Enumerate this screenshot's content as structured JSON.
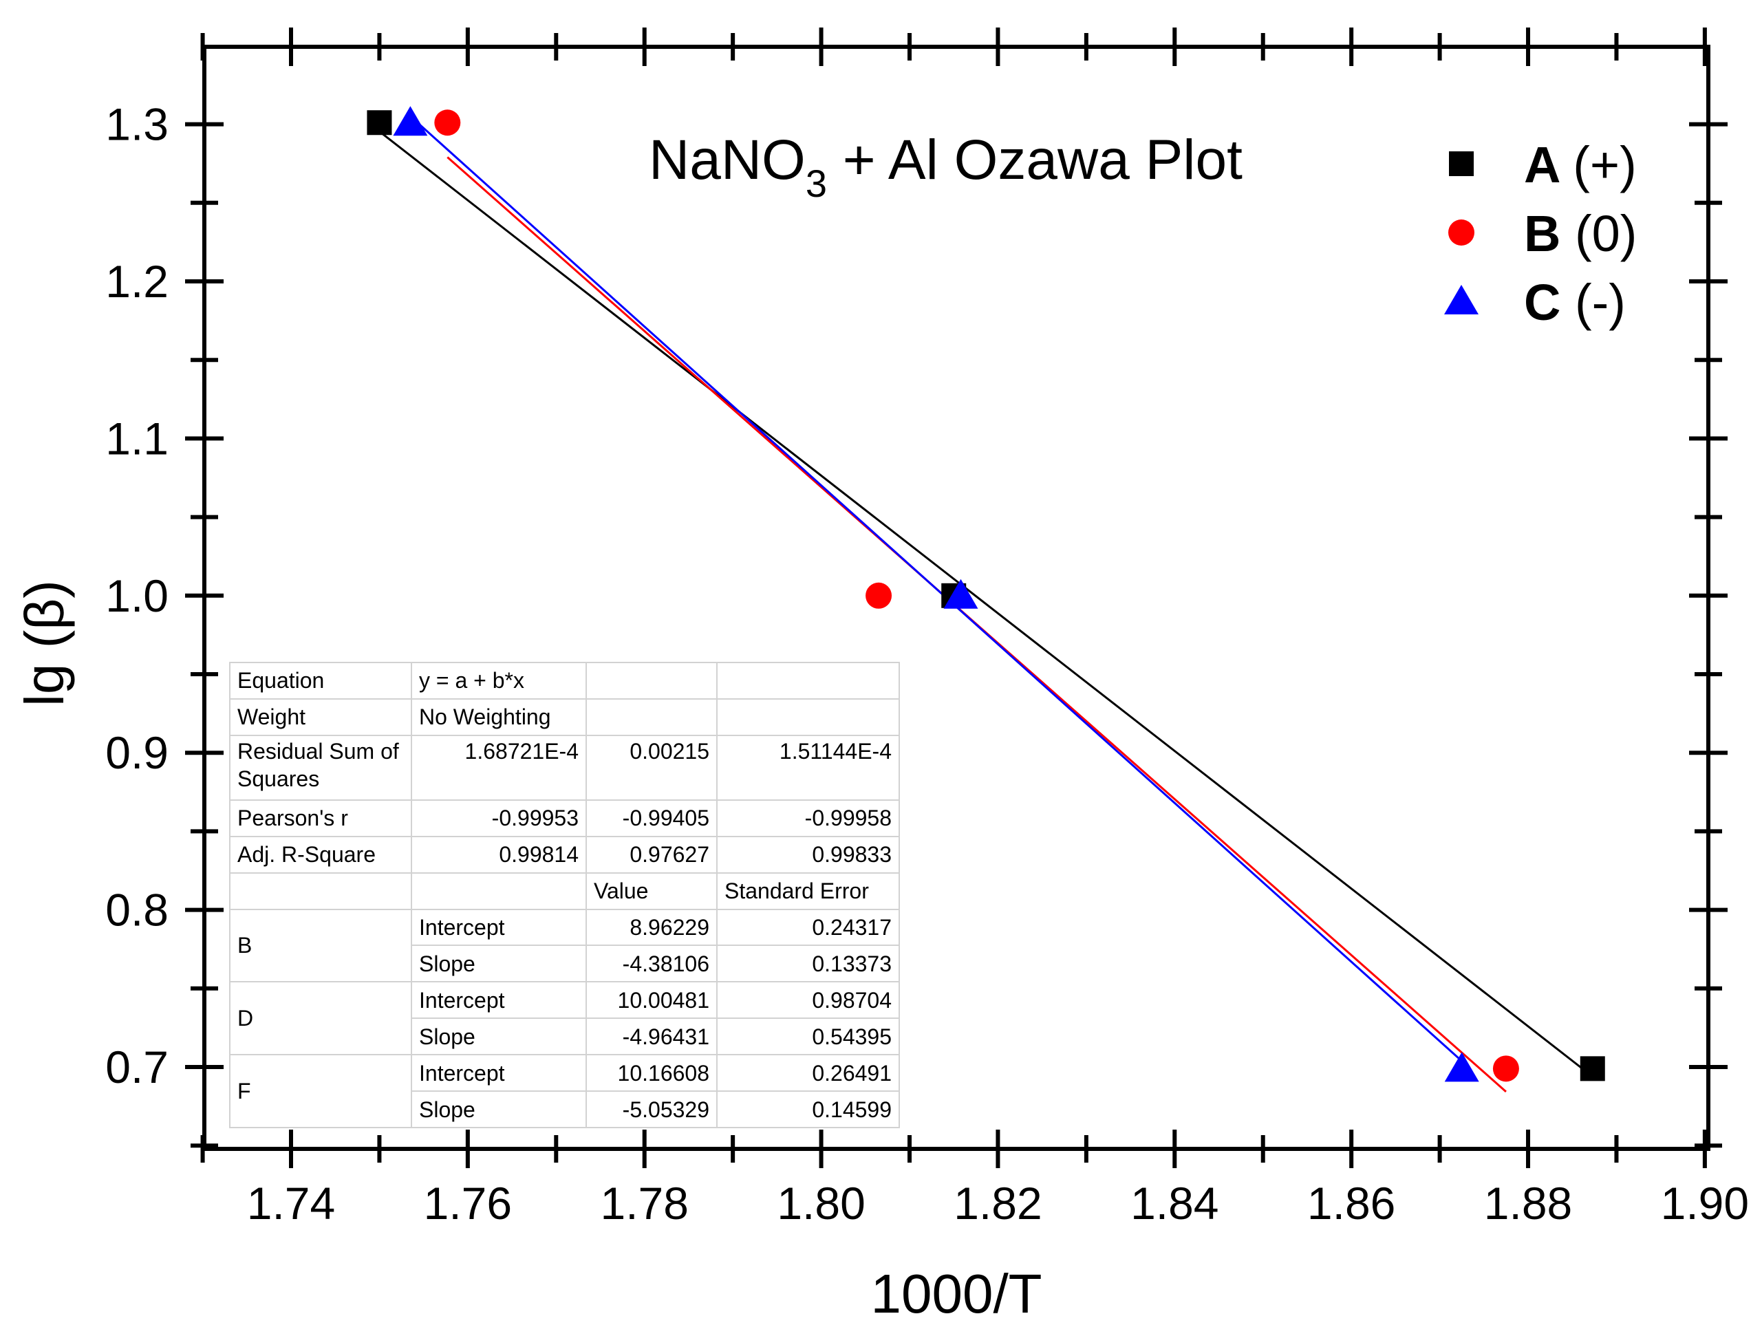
{
  "chart_data": {
    "type": "scatter",
    "title_main": "NaNO",
    "title_subscript": "3",
    "title_rest": " + Al  Ozawa Plot",
    "xlabel": "1000/T",
    "ylabel": "lg (β)",
    "xlim": [
      1.73,
      1.9
    ],
    "ylim": [
      0.65,
      1.35
    ],
    "x_ticks": [
      1.74,
      1.76,
      1.78,
      1.8,
      1.82,
      1.84,
      1.86,
      1.88,
      1.9
    ],
    "x_tick_labels": [
      "1.74",
      "1.76",
      "1.78",
      "1.80",
      "1.82",
      "1.84",
      "1.86",
      "1.88",
      "1.90"
    ],
    "y_ticks": [
      0.7,
      0.8,
      0.9,
      1.0,
      1.1,
      1.2,
      1.3
    ],
    "y_tick_labels": [
      "0.7",
      "0.8",
      "0.9",
      "1.0",
      "1.1",
      "1.2",
      "1.3"
    ],
    "legend_position": "top-right",
    "series": [
      {
        "name": "A (+)",
        "legend_letter": "A",
        "legend_sign": "(+)",
        "marker": "square",
        "color": "#000000",
        "x": [
          1.75,
          1.815,
          1.8873
        ],
        "y": [
          1.30103,
          1.0,
          0.69897
        ],
        "fit": {
          "intercept": 8.96229,
          "slope": -4.38106,
          "x_range": [
            1.75,
            1.8873
          ]
        }
      },
      {
        "name": "B (0)",
        "legend_letter": "B",
        "legend_sign": "(0)",
        "marker": "circle",
        "color": "#ff0000",
        "x": [
          1.7577,
          1.8065,
          1.8775
        ],
        "y": [
          1.30103,
          1.0,
          0.69897
        ],
        "fit": {
          "intercept": 10.00481,
          "slope": -4.96431,
          "x_range": [
            1.7577,
            1.8775
          ]
        }
      },
      {
        "name": "C (-)",
        "legend_letter": "C",
        "legend_sign": "(-)",
        "marker": "triangle",
        "color": "#0000ff",
        "x": [
          1.7535,
          1.8158,
          1.8725
        ],
        "y": [
          1.30103,
          1.0,
          0.69897
        ],
        "fit": {
          "intercept": 10.16608,
          "slope": -5.05329,
          "x_range": [
            1.7535,
            1.873
          ]
        }
      }
    ]
  },
  "fit_table": {
    "equation_label": "Equation",
    "equation_value": "y = a + b*x",
    "weight_label": "Weight",
    "weight_value": "No Weighting",
    "rss_label": "Residual Sum of Squares",
    "rss_values": [
      "1.68721E-4",
      "0.00215",
      "1.51144E-4"
    ],
    "pearson_label": "Pearson's r",
    "pearson_values": [
      "-0.99953",
      "-0.99405",
      "-0.99958"
    ],
    "adjr_label": "Adj. R-Square",
    "adjr_values": [
      "0.99814",
      "0.97627",
      "0.99833"
    ],
    "value_header": "Value",
    "stderr_header": "Standard Error",
    "rows": [
      {
        "group": "B",
        "param1": "Intercept",
        "value1": "8.96229",
        "err1": "0.24317",
        "param2": "Slope",
        "value2": "-4.38106",
        "err2": "0.13373"
      },
      {
        "group": "D",
        "param1": "Intercept",
        "value1": "10.00481",
        "err1": "0.98704",
        "param2": "Slope",
        "value2": "-4.96431",
        "err2": "0.54395"
      },
      {
        "group": "F",
        "param1": "Intercept",
        "value1": "10.16608",
        "err1": "0.26491",
        "param2": "Slope",
        "value2": "-5.05329",
        "err2": "0.14599"
      }
    ]
  }
}
